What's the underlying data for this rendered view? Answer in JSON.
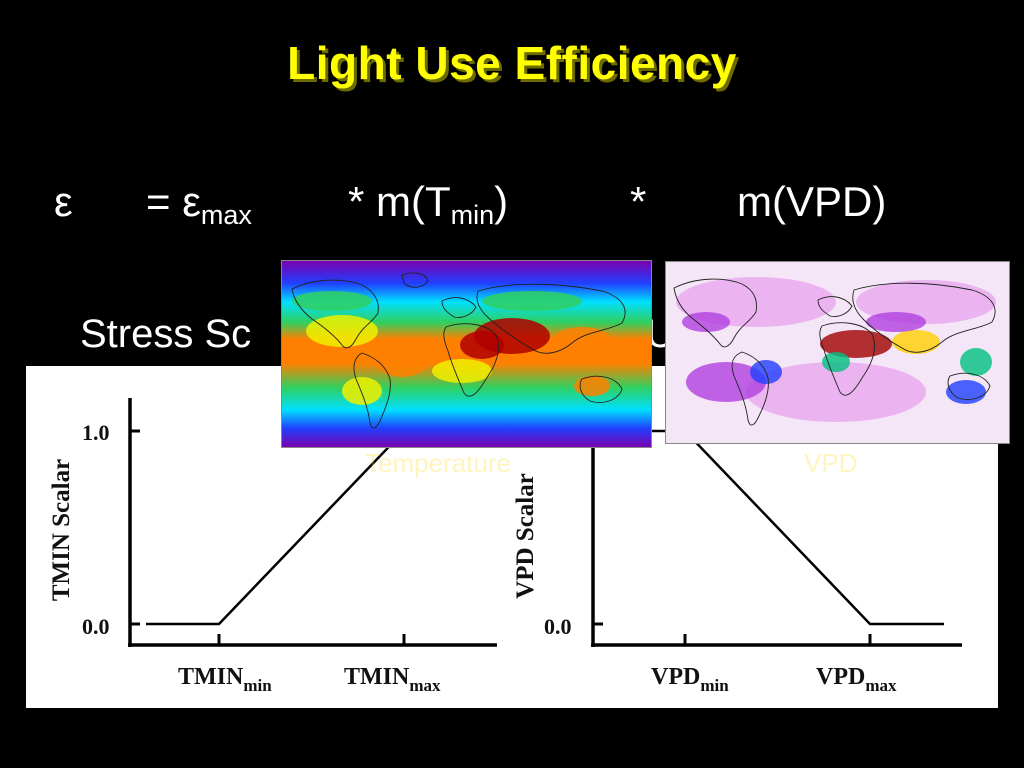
{
  "slide": {
    "title": "Light Use Efficiency",
    "equation": {
      "epsilon": "ε",
      "equals_eps": "= ε",
      "max_sub": "max",
      "mult_m_t": "* m(T",
      "min_sub": "min",
      "close_paren": ")",
      "star": "*",
      "m_vpd": "m(VPD)"
    },
    "stress_text": "Stress Sc",
    "stress_text_tail": "Us",
    "captions": {
      "temperature": "Temperature",
      "vpd": "VPD"
    }
  },
  "chart_data": [
    {
      "type": "line",
      "ylabel": "TMIN Scalar",
      "y_ticks": [
        "1.0",
        "0.0"
      ],
      "x_tick_labels": [
        {
          "base": "TMIN",
          "sub": "min"
        },
        {
          "base": "TMIN",
          "sub": "max"
        }
      ],
      "series": [
        {
          "x": [
            "before",
            "TMIN_min",
            "TMIN_max",
            "after"
          ],
          "y": [
            0.0,
            0.0,
            1.0,
            1.0
          ]
        }
      ],
      "ylim": [
        0,
        1
      ]
    },
    {
      "type": "line",
      "ylabel": "VPD Scalar",
      "y_ticks": [
        "0.0"
      ],
      "x_tick_labels": [
        {
          "base": "VPD",
          "sub": "min"
        },
        {
          "base": "VPD",
          "sub": "max"
        }
      ],
      "series": [
        {
          "x": [
            "before",
            "VPD_min",
            "VPD_max",
            "after"
          ],
          "y": [
            1.0,
            1.0,
            0.0,
            0.0
          ]
        }
      ],
      "ylim": [
        0,
        1
      ]
    }
  ],
  "maps": {
    "temperature_colors": [
      "#7a00b0",
      "#2040ff",
      "#00e0ff",
      "#30d060",
      "#f0f000",
      "#ff8000",
      "#b00000"
    ],
    "vpd_colors": [
      "#f4e6f6",
      "#e8a8f0",
      "#b040e0",
      "#2040ff",
      "#00c080",
      "#ffd000",
      "#a00000"
    ]
  }
}
